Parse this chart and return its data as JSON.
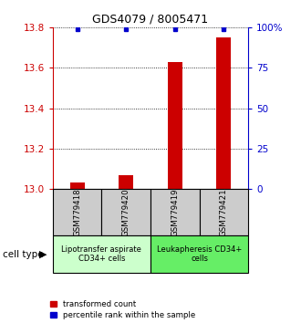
{
  "title": "GDS4079 / 8005471",
  "samples": [
    "GSM779418",
    "GSM779420",
    "GSM779419",
    "GSM779421"
  ],
  "transformed_counts": [
    13.03,
    13.07,
    13.63,
    13.75
  ],
  "percentile_ranks": [
    99,
    99,
    99,
    99
  ],
  "ylim_left": [
    13.0,
    13.8
  ],
  "yticks_left": [
    13.0,
    13.2,
    13.4,
    13.6,
    13.8
  ],
  "yticks_right": [
    0,
    25,
    50,
    75,
    100
  ],
  "bar_color": "#cc0000",
  "dot_color": "#0000cc",
  "group1_label": "Lipotransfer aspirate\nCD34+ cells",
  "group2_label": "Leukapheresis CD34+\ncells",
  "group1_indices": [
    0,
    1
  ],
  "group2_indices": [
    2,
    3
  ],
  "group1_bg": "#ccffcc",
  "group2_bg": "#66ee66",
  "sample_box_bg": "#cccccc",
  "cell_type_label": "cell type",
  "legend_red": "transformed count",
  "legend_blue": "percentile rank within the sample",
  "left_axis_color": "#cc0000",
  "right_axis_color": "#0000cc",
  "bar_width": 0.3
}
